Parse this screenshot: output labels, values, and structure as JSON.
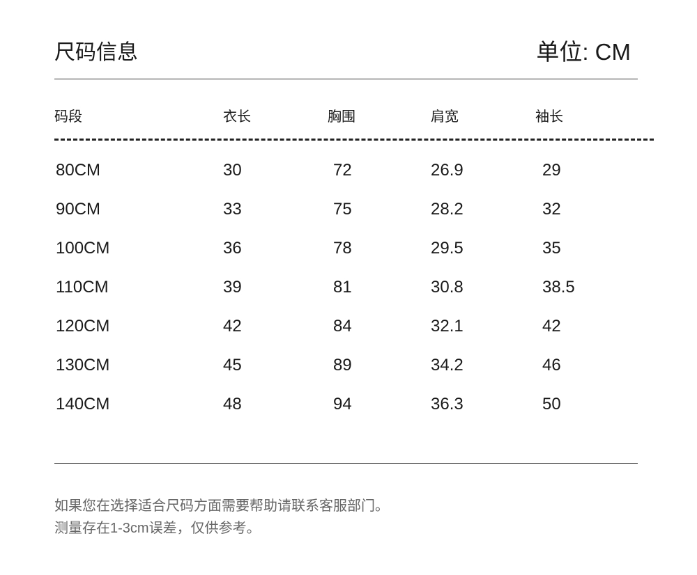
{
  "title": "尺码信息",
  "unit": "单位: CM",
  "columns": [
    "码段",
    "衣长",
    "胸围",
    "肩宽",
    "袖长"
  ],
  "rows": [
    [
      "80CM",
      "30",
      "72",
      "26.9",
      "29"
    ],
    [
      "90CM",
      "33",
      "75",
      "28.2",
      "32"
    ],
    [
      "100CM",
      "36",
      "78",
      "29.5",
      "35"
    ],
    [
      "110CM",
      "39",
      "81",
      "30.8",
      "38.5"
    ],
    [
      "120CM",
      "42",
      "84",
      "32.1",
      "42"
    ],
    [
      "130CM",
      "45",
      "89",
      "34.2",
      "46"
    ],
    [
      "140CM",
      "48",
      "94",
      "36.3",
      "50"
    ]
  ],
  "footer": [
    "如果您在选择适合尺码方面需要帮助请联系客服部门。",
    "测量存在1-3cm误差，仅供参考。"
  ]
}
